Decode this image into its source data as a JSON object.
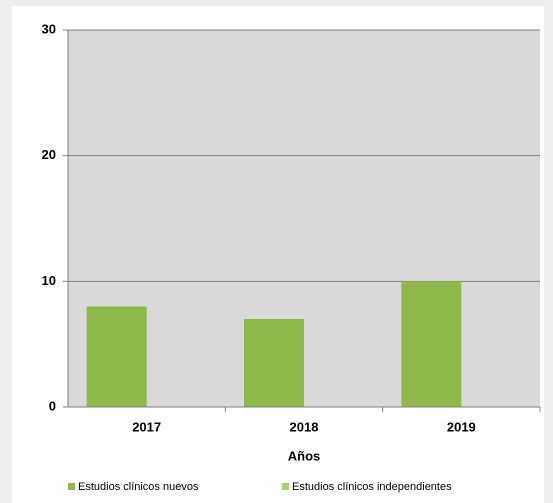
{
  "chart_data": {
    "type": "bar",
    "x_label": "Años",
    "categories": [
      "2017",
      "2018",
      "2019"
    ],
    "series": [
      {
        "name": "Estudios clínicos nuevos",
        "color": "#8cb94a",
        "values": [
          8,
          7,
          10
        ]
      },
      {
        "name": "Estudios clínicos independientes",
        "color": "#a8d070",
        "values": [
          0,
          0,
          0
        ]
      }
    ],
    "ylim": [
      0,
      30
    ],
    "yticks": [
      0,
      10,
      20,
      30
    ],
    "grid": true
  }
}
